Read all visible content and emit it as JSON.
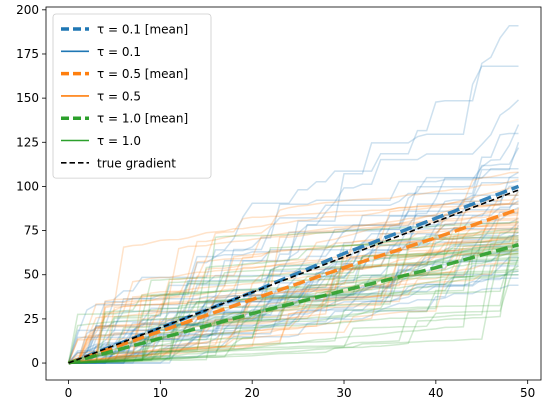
{
  "chart_data": {
    "type": "line",
    "title": "",
    "xlabel": "",
    "ylabel": "",
    "xlim": [
      -2.45,
      51.45
    ],
    "ylim": [
      -9.6,
      201.6
    ],
    "xticks": [
      0,
      10,
      20,
      30,
      40,
      50
    ],
    "xtick_labels": [
      "0",
      "10",
      "20",
      "30",
      "40",
      "50"
    ],
    "yticks": [
      0,
      25,
      50,
      75,
      100,
      125,
      150,
      175,
      200
    ],
    "ytick_labels": [
      "0",
      "25",
      "50",
      "75",
      "100",
      "125",
      "150",
      "175",
      "200"
    ],
    "grid": false,
    "legend_position": "upper-left",
    "legend": [
      {
        "label": "τ = 0.1 [mean]",
        "color": "#1f77b4",
        "style": "dashed-thick"
      },
      {
        "label": "τ = 0.1",
        "color": "#1f77b4",
        "style": "solid"
      },
      {
        "label": "τ = 0.5 [mean]",
        "color": "#ff7f0e",
        "style": "dashed-thick"
      },
      {
        "label": "τ = 0.5",
        "color": "#ff7f0e",
        "style": "solid"
      },
      {
        "label": "τ = 1.0 [mean]",
        "color": "#2ca02c",
        "style": "dashed-thick"
      },
      {
        "label": "τ = 1.0",
        "color": "#2ca02c",
        "style": "solid"
      },
      {
        "label": "true gradient",
        "color": "#000000",
        "style": "dashed"
      }
    ],
    "x": [
      0,
      10,
      20,
      30,
      40,
      49
    ],
    "series": [
      {
        "name": "τ = 0.1 [mean]",
        "color": "#1f77b4",
        "style": "mean",
        "values": [
          0,
          20,
          40,
          62,
          82,
          100
        ]
      },
      {
        "name": "τ = 0.5 [mean]",
        "color": "#ff7f0e",
        "style": "mean",
        "values": [
          0,
          18,
          36,
          54,
          71,
          87
        ]
      },
      {
        "name": "τ = 1.0 [mean]",
        "color": "#2ca02c",
        "style": "mean",
        "values": [
          0,
          14,
          28,
          41,
          54,
          67
        ]
      },
      {
        "name": "true gradient",
        "color": "#000000",
        "style": "true",
        "values": [
          0,
          20,
          40,
          60,
          80,
          98
        ]
      }
    ],
    "sample_final_values": {
      "τ = 0.1": [
        191,
        168,
        149,
        135,
        130,
        125,
        122,
        110,
        108,
        105,
        103,
        100,
        98,
        95,
        92,
        90,
        88,
        85,
        82,
        80,
        78,
        76,
        74,
        72,
        70,
        66,
        63,
        60,
        58,
        55,
        52,
        50,
        48,
        44
      ],
      "τ = 0.5": [
        108,
        104,
        100,
        97,
        95,
        93,
        91,
        90,
        88,
        87,
        86,
        85,
        84,
        82,
        81,
        80,
        79,
        78,
        77,
        76,
        75,
        74,
        72,
        71,
        70,
        69,
        68,
        66,
        64,
        62
      ],
      "τ = 1.0": [
        80,
        76,
        74,
        72,
        71,
        70,
        69,
        68,
        67,
        67,
        66,
        66,
        65,
        65,
        64,
        64,
        63,
        62,
        62,
        61,
        60,
        60,
        59,
        58,
        57,
        56,
        55,
        53,
        52,
        50
      ]
    }
  }
}
